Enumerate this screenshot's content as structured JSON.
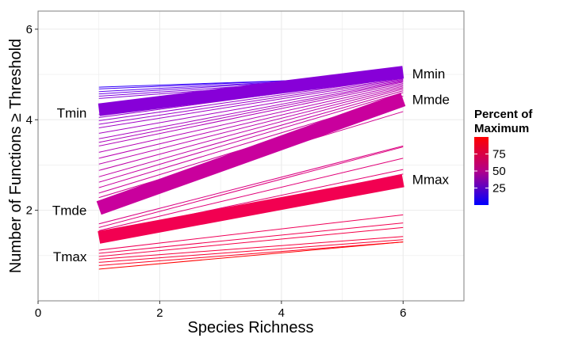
{
  "chart_data": {
    "type": "line",
    "title": "",
    "xlabel": "Species Richness",
    "ylabel": "Number of Functions ≥ Threshold",
    "xlim": [
      0,
      7
    ],
    "ylim": [
      0,
      6.4
    ],
    "xticks": [
      0,
      2,
      4,
      6
    ],
    "yticks": [
      2,
      4,
      6
    ],
    "grid": true,
    "x": [
      1,
      6
    ],
    "thin_series": [
      {
        "pct": 3,
        "y": [
          4.72,
          4.95
        ]
      },
      {
        "pct": 8,
        "y": [
          4.68,
          4.97
        ]
      },
      {
        "pct": 13,
        "y": [
          4.62,
          4.98
        ]
      },
      {
        "pct": 18,
        "y": [
          4.57,
          4.99
        ]
      },
      {
        "pct": 24,
        "y": [
          4.52,
          4.98
        ]
      },
      {
        "pct": 28,
        "y": [
          4.47,
          4.97
        ]
      },
      {
        "pct": 32,
        "y": [
          4.12,
          4.96
        ]
      },
      {
        "pct": 34,
        "y": [
          4.05,
          4.95
        ]
      },
      {
        "pct": 36,
        "y": [
          3.98,
          4.93
        ]
      },
      {
        "pct": 38,
        "y": [
          3.9,
          4.91
        ]
      },
      {
        "pct": 40,
        "y": [
          3.82,
          4.89
        ]
      },
      {
        "pct": 42,
        "y": [
          3.7,
          4.87
        ]
      },
      {
        "pct": 44,
        "y": [
          3.58,
          4.85
        ]
      },
      {
        "pct": 46,
        "y": [
          3.5,
          4.83
        ]
      },
      {
        "pct": 48,
        "y": [
          3.42,
          4.8
        ]
      },
      {
        "pct": 50,
        "y": [
          3.28,
          4.77
        ]
      },
      {
        "pct": 52,
        "y": [
          3.15,
          4.74
        ]
      },
      {
        "pct": 54,
        "y": [
          3.02,
          4.71
        ]
      },
      {
        "pct": 56,
        "y": [
          2.88,
          4.68
        ]
      },
      {
        "pct": 58,
        "y": [
          2.74,
          4.64
        ]
      },
      {
        "pct": 60,
        "y": [
          2.62,
          4.6
        ]
      },
      {
        "pct": 62,
        "y": [
          2.5,
          4.52
        ]
      },
      {
        "pct": 64,
        "y": [
          2.38,
          4.42
        ]
      },
      {
        "pct": 66,
        "y": [
          2.28,
          4.3
        ]
      },
      {
        "pct": 68,
        "y": [
          2.15,
          4.18
        ]
      },
      {
        "pct": 74,
        "y": [
          1.7,
          3.42
        ]
      },
      {
        "pct": 76,
        "y": [
          1.62,
          3.4
        ]
      },
      {
        "pct": 78,
        "y": [
          1.55,
          3.15
        ]
      },
      {
        "pct": 80,
        "y": [
          1.48,
          2.9
        ]
      },
      {
        "pct": 82,
        "y": [
          1.42,
          2.8
        ]
      },
      {
        "pct": 88,
        "y": [
          1.12,
          1.9
        ]
      },
      {
        "pct": 90,
        "y": [
          1.05,
          1.72
        ]
      },
      {
        "pct": 92,
        "y": [
          0.98,
          1.62
        ]
      },
      {
        "pct": 94,
        "y": [
          0.92,
          1.42
        ]
      },
      {
        "pct": 96,
        "y": [
          0.85,
          1.35
        ]
      },
      {
        "pct": 98,
        "y": [
          0.78,
          1.3
        ]
      },
      {
        "pct": 100,
        "y": [
          0.7,
          1.3
        ]
      }
    ],
    "thick_series": [
      {
        "name": "min",
        "pct": 28,
        "y": [
          4.22,
          5.05
        ],
        "width": 16
      },
      {
        "name": "mde",
        "pct": 62,
        "y": [
          2.05,
          4.45
        ],
        "width": 18
      },
      {
        "name": "max",
        "pct": 90,
        "y": [
          1.4,
          2.65
        ],
        "width": 16
      }
    ],
    "annotations": [
      {
        "text": "Tmin",
        "x": 0.8,
        "y": 4.15,
        "anchor": "end"
      },
      {
        "text": "Tmde",
        "x": 0.8,
        "y": 2.0,
        "anchor": "end"
      },
      {
        "text": "Tmax",
        "x": 0.8,
        "y": 0.98,
        "anchor": "end"
      },
      {
        "text": "Mmin",
        "x": 6.15,
        "y": 5.02,
        "anchor": "start"
      },
      {
        "text": "Mmde",
        "x": 6.15,
        "y": 4.45,
        "anchor": "start"
      },
      {
        "text": "Mmax",
        "x": 6.15,
        "y": 2.68,
        "anchor": "start"
      }
    ],
    "legend": {
      "title_lines": [
        "Percent of",
        "Maximum"
      ],
      "placement": "right",
      "ticks": [
        25,
        50,
        75
      ],
      "range": [
        0,
        100
      ],
      "colors": [
        "#0000ff",
        "#ff0000"
      ]
    }
  }
}
